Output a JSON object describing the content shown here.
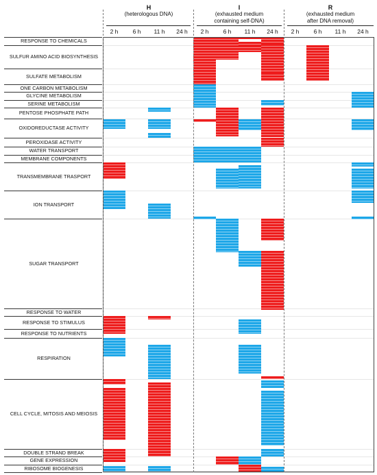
{
  "groups": [
    {
      "id": "H",
      "name": "H",
      "desc": [
        "(heterologous DNA)"
      ]
    },
    {
      "id": "I",
      "name": "I",
      "desc": [
        "(exhausted medium",
        "containing self-DNA)"
      ]
    },
    {
      "id": "R",
      "name": "R",
      "desc": [
        "(exhausted medium",
        "after DNA removal)"
      ]
    }
  ],
  "time_labels": [
    "2 h",
    "6 h",
    "11 h",
    "24 h"
  ],
  "categories": [
    "RESPONSE TO CHEMICALS",
    "SULFUR AMINO ACID BIOSYNTHESIS",
    "SULFATE METABOLISM",
    "ONE CARBON METABOLISM",
    "GLYCINE METABOLISM",
    "SERINE METABOLISM",
    "PENTOSE PHOSPHATE PATH",
    "OXIDOREDUCTASE ACTIVITY",
    "PEROXIDASE ACTIVITY",
    "WATER TRANSPORT",
    "MEMBRANE COMPONENTS",
    "TRANSMEMBRANE TRASPORT",
    "ION TRANSPORT",
    "SUGAR TRANSPORT",
    "RESPONSE TO WATER",
    "RESPONSE TO STIMULUS",
    "RESPONSE TO NUTRIENTS",
    "RESPIRATION",
    "CELL CYCLE, MITOSIS AND MEIOSIS",
    "DOUBLE STRAND BREAK",
    "GENE EXPRESSION",
    "RIBOSOME BIOGENESIS"
  ],
  "colors": {
    "up": "#ee1c1c",
    "down": "#1ea7e8",
    "stripe": "#ffffff"
  }
}
